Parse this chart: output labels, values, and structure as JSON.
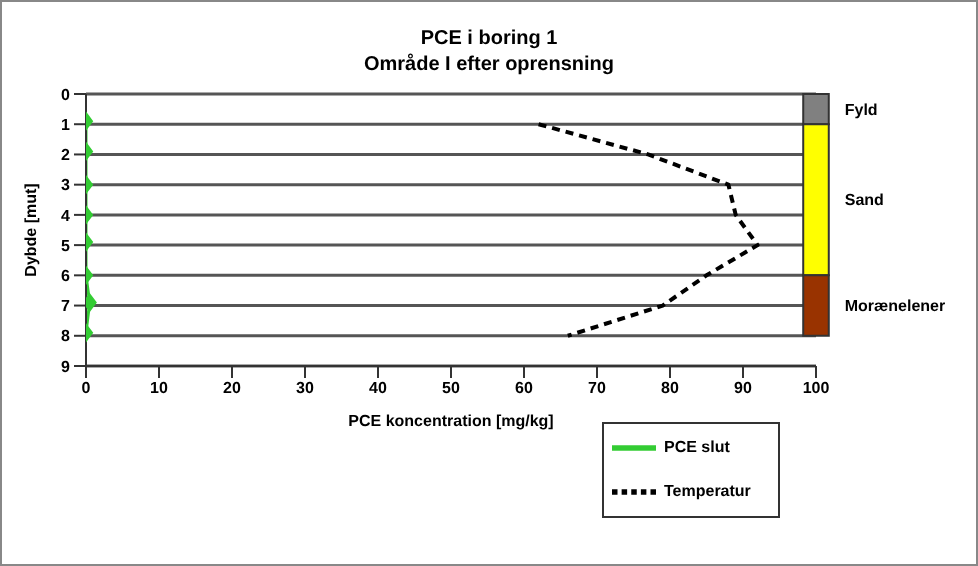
{
  "chart_data": {
    "type": "line",
    "title": "PCE i boring 1",
    "subtitle": "Område I efter oprensning",
    "xlabel": "PCE koncentration [mg/kg]",
    "ylabel": "Dybde [mut]",
    "xlim": [
      0,
      100
    ],
    "xticks": [
      0,
      10,
      20,
      30,
      40,
      50,
      60,
      70,
      80,
      90,
      100
    ],
    "ylim": [
      9,
      0
    ],
    "yticks": [
      0,
      1,
      2,
      3,
      4,
      5,
      6,
      7,
      8,
      9
    ],
    "grid": "y",
    "legend": "bottom right",
    "series": [
      {
        "name": "PCE slut",
        "color": "#33cc33",
        "marker": "diamond",
        "line_style": "solid",
        "x": [
          0,
          0,
          0,
          0,
          0,
          0,
          0.5,
          0
        ],
        "values": [
          0.9,
          1.9,
          3,
          4,
          4.9,
          6,
          6.9,
          7.9
        ]
      },
      {
        "name": "Temperatur",
        "color": "#000000",
        "marker": "none",
        "line_style": "dashed",
        "x": [
          62,
          77,
          88,
          89,
          92,
          85,
          79,
          66
        ],
        "values": [
          1,
          2,
          3,
          4,
          5,
          6,
          7,
          8
        ]
      },
      {
        "type": "bar",
        "name": "Fyld",
        "color": "#808080",
        "x": [
          100
        ],
        "values": [
          1
        ]
      },
      {
        "type": "bar",
        "name": "Sand",
        "color": "#ffff00",
        "x": [
          100
        ],
        "values": [
          5
        ]
      },
      {
        "type": "bar",
        "name": "Morænelener",
        "color": "#993300",
        "x": [
          100
        ],
        "values": [
          2
        ]
      }
    ],
    "stacked": true
  }
}
